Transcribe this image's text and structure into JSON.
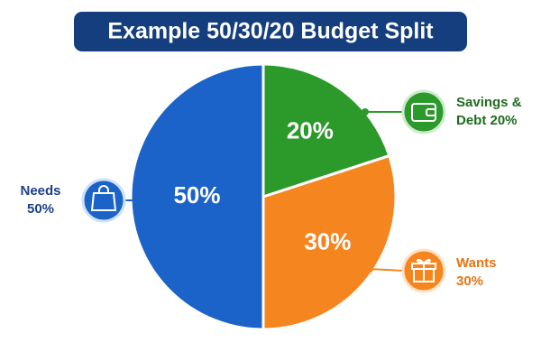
{
  "chart_data": {
    "type": "pie",
    "title": "Example 50/30/20 Budget Split",
    "categories": [
      "Needs 50%",
      "Savings & Debt 20%",
      "Wants 30%"
    ],
    "values": [
      50,
      20,
      30
    ],
    "value_labels": [
      "50%",
      "20%",
      "30%"
    ],
    "colors": [
      "#1b63c8",
      "#2b9a2b",
      "#f5861f"
    ]
  }
}
